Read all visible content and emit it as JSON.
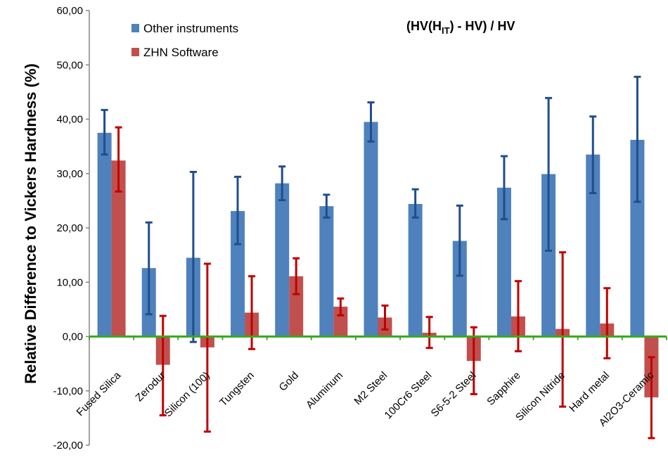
{
  "chart_data": {
    "type": "bar",
    "title_main": "(HV(H",
    "title_sub": "IT",
    "title_rest": ") - HV) / HV",
    "ylabel": "Relative Difference to Vickers Hardness (%)",
    "xlabel": "",
    "ylim": [
      -20,
      60
    ],
    "yticks": [
      "60,00",
      "50,00",
      "40,00",
      "30,00",
      "20,00",
      "10,00",
      "0,00",
      "-10,00",
      "-20,00"
    ],
    "grid": false,
    "legend_position": "top-left",
    "categories": [
      "Fused Silica",
      "Zerodur",
      "Silicon (100)",
      "Tungsten",
      "Gold",
      "Aluminum",
      "M2 Steel",
      "100Cr6 Steel",
      "S6-5-2 Steel",
      "Sapphire",
      "Silicon Nitride",
      "Hard metal",
      "Al2O3-Ceramic"
    ],
    "series": [
      {
        "name": "Other instruments",
        "color": "#4f81bd",
        "error_color": "#1f4e8c",
        "values": [
          37.5,
          12.6,
          14.5,
          23.1,
          28.2,
          24.0,
          39.5,
          24.4,
          17.6,
          27.4,
          29.9,
          33.5,
          36.2
        ],
        "err_low": [
          33.5,
          4.1,
          -1.0,
          17.0,
          25.1,
          21.9,
          35.9,
          21.9,
          11.2,
          21.6,
          15.8,
          26.4,
          24.8
        ],
        "err_high": [
          41.7,
          21.0,
          30.3,
          29.4,
          31.3,
          26.1,
          43.1,
          27.1,
          24.1,
          33.2,
          43.9,
          40.5,
          47.8
        ]
      },
      {
        "name": "ZHN Software",
        "color": "#c0504d",
        "error_color": "#c00000",
        "values": [
          32.4,
          -5.2,
          -2.0,
          4.4,
          11.1,
          5.5,
          3.5,
          0.7,
          -4.5,
          3.7,
          1.4,
          2.4,
          -11.2
        ],
        "err_low": [
          26.7,
          -14.5,
          -17.5,
          -2.3,
          7.8,
          3.9,
          1.3,
          -2.1,
          -10.6,
          -2.7,
          -12.9,
          -4.0,
          -18.7
        ],
        "err_high": [
          38.5,
          3.8,
          13.4,
          11.1,
          14.4,
          7.0,
          5.7,
          3.6,
          1.7,
          10.2,
          15.5,
          8.9,
          -3.8
        ]
      }
    ],
    "zero_line_color": "#3aaa1f"
  }
}
